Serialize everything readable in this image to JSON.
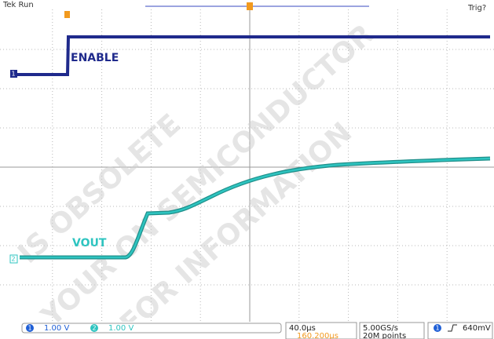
{
  "header": {
    "status": "Tek Run",
    "trigger": "Trig?"
  },
  "traces": {
    "ch1_label": "ENABLE",
    "ch2_label": "VOUT",
    "ch1_marker": "1",
    "ch2_marker": "2"
  },
  "watermark": [
    "IS OBSOLETE",
    "YOUR ON SEMICONDUCTOR",
    "FOR INFORMATION"
  ],
  "footer": {
    "ch1_number": "1",
    "ch1_scale": "1.00 V",
    "ch2_number": "2",
    "ch2_scale": "1.00 V",
    "timebase": "40.0µs",
    "position": "160.200µs",
    "sample_rate": "5.00GS/s",
    "record": "20M points",
    "trig_channel": "1",
    "trig_level": "640mV"
  }
}
